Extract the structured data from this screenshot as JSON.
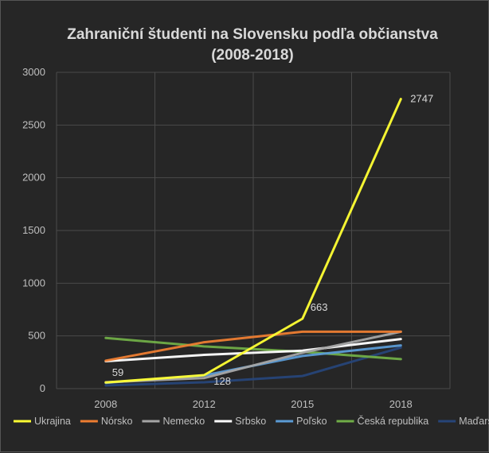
{
  "chart_data": {
    "type": "line",
    "title_line1": "Zahraniční študenti na Slovensku podľa občianstva",
    "title_line2": "(2008-2018)",
    "xlabel": "",
    "ylabel": "",
    "categories": [
      "2008",
      "2012",
      "2015",
      "2018"
    ],
    "ylim": [
      0,
      3000
    ],
    "yticks": [
      "0",
      "500",
      "1000",
      "1500",
      "2000",
      "2500",
      "3000"
    ],
    "grid": true,
    "legend_position": "bottom",
    "series": [
      {
        "name": "Ukrajina",
        "color": "#ffff33",
        "values": [
          59,
          128,
          663,
          2747
        ]
      },
      {
        "name": "Nórsko",
        "color": "#ed7d31",
        "values": [
          265,
          440,
          540,
          540
        ]
      },
      {
        "name": "Nemecko",
        "color": "#a5a5a5",
        "values": [
          60,
          100,
          340,
          540
        ]
      },
      {
        "name": "Srbsko",
        "color": "#ffffff",
        "values": [
          260,
          320,
          360,
          470
        ]
      },
      {
        "name": "Poľsko",
        "color": "#5b9bd5",
        "values": [
          55,
          125,
          310,
          410
        ]
      },
      {
        "name": "Česká republika",
        "color": "#70ad47",
        "values": [
          480,
          400,
          350,
          280
        ]
      },
      {
        "name": "Maďarsko",
        "color": "#264478",
        "values": [
          30,
          60,
          120,
          390
        ]
      }
    ],
    "data_labels": [
      {
        "series": "Ukrajina",
        "index": 0,
        "text": "59"
      },
      {
        "series": "Ukrajina",
        "index": 1,
        "text": "128"
      },
      {
        "series": "Ukrajina",
        "index": 2,
        "text": "663"
      },
      {
        "series": "Ukrajina",
        "index": 3,
        "text": "2747"
      }
    ]
  }
}
